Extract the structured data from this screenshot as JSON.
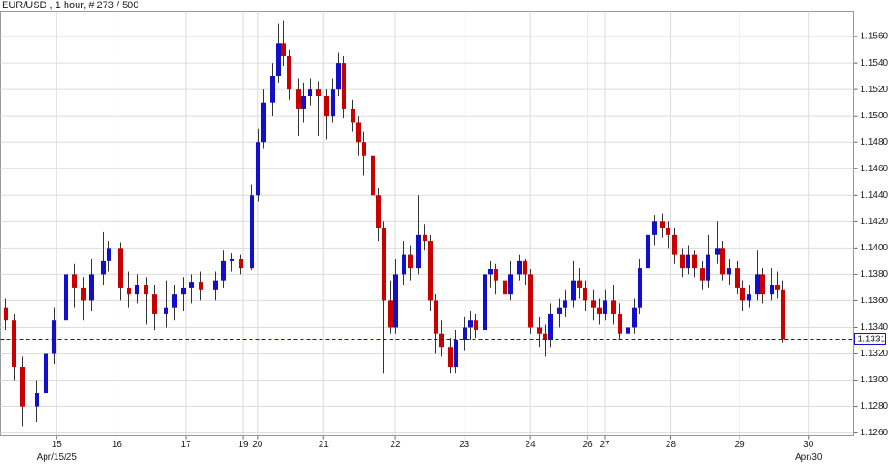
{
  "chart_data": {
    "type": "candlestick",
    "title": "EUR/USD , 1 hour, # 273 / 500",
    "up_color": "#1010c8",
    "down_color": "#c80000",
    "grid": true,
    "xlim": [
      -0.6,
      296.8
    ],
    "ylim": [
      1.1258,
      1.1579
    ],
    "xticks": [
      {
        "value": 19,
        "label": "15"
      },
      {
        "value": 40,
        "label": "16"
      },
      {
        "value": 64,
        "label": "17"
      },
      {
        "value": 84,
        "label": "19"
      },
      {
        "value": 89,
        "label": "20"
      },
      {
        "value": 112,
        "label": "21"
      },
      {
        "value": 137,
        "label": "22"
      },
      {
        "value": 161,
        "label": "23"
      },
      {
        "value": 184,
        "label": "24"
      },
      {
        "value": 204,
        "label": "26"
      },
      {
        "value": 210,
        "label": "27"
      },
      {
        "value": 233,
        "label": "28"
      },
      {
        "value": 257,
        "label": "29"
      },
      {
        "value": 281,
        "label": "30"
      }
    ],
    "xticks2": [
      {
        "value": 19,
        "label": "Apr/15/25"
      },
      {
        "value": 281,
        "label": "Apr/30"
      }
    ],
    "yticks": [
      {
        "value": 1.126,
        "label": "1.1260"
      },
      {
        "value": 1.128,
        "label": "1.1280"
      },
      {
        "value": 1.13,
        "label": "1.1300"
      },
      {
        "value": 1.132,
        "label": "1.1320"
      },
      {
        "value": 1.134,
        "label": "1.1340"
      },
      {
        "value": 1.136,
        "label": "1.1360"
      },
      {
        "value": 1.138,
        "label": "1.1380"
      },
      {
        "value": 1.14,
        "label": "1.1400"
      },
      {
        "value": 1.142,
        "label": "1.1420"
      },
      {
        "value": 1.144,
        "label": "1.1440"
      },
      {
        "value": 1.146,
        "label": "1.1460"
      },
      {
        "value": 1.148,
        "label": "1.1480"
      },
      {
        "value": 1.15,
        "label": "1.1500"
      },
      {
        "value": 1.152,
        "label": "1.1520"
      },
      {
        "value": 1.154,
        "label": "1.1540"
      },
      {
        "value": 1.156,
        "label": "1.1560"
      }
    ],
    "last_price": 1.1331,
    "last_price_color": "#1010c8",
    "x": [
      1,
      4,
      7,
      12,
      15,
      18,
      22,
      25,
      28,
      31,
      35,
      37,
      41,
      44,
      47,
      50,
      53,
      57,
      60,
      63,
      66,
      69,
      74,
      77,
      80,
      83,
      87,
      89,
      91,
      94,
      96,
      98,
      100,
      103,
      105,
      107,
      110,
      113,
      115,
      117,
      119,
      122,
      124,
      126,
      129,
      131,
      133,
      135,
      137,
      140,
      142,
      145,
      147,
      149,
      151,
      153,
      156,
      158,
      161,
      163,
      165,
      168,
      170,
      172,
      175,
      177,
      180,
      182,
      184,
      187,
      189,
      191,
      194,
      196,
      199,
      201,
      203,
      206,
      208,
      210,
      213,
      215,
      218,
      220,
      222,
      225,
      227,
      230,
      232,
      234,
      237,
      239,
      241,
      244,
      246,
      249,
      251,
      253,
      256,
      258,
      260,
      263,
      265,
      268,
      270,
      272
    ],
    "open": [
      1.1355,
      1.1345,
      1.131,
      1.128,
      1.129,
      1.132,
      1.1345,
      1.138,
      1.137,
      1.136,
      1.138,
      1.139,
      1.14,
      1.137,
      1.1365,
      1.1372,
      1.1365,
      1.135,
      1.1355,
      1.1365,
      1.137,
      1.1374,
      1.1368,
      1.1375,
      1.139,
      1.1392,
      1.1385,
      1.144,
      1.148,
      1.151,
      1.153,
      1.1555,
      1.1545,
      1.152,
      1.1505,
      1.1515,
      1.152,
      1.1515,
      1.15,
      1.152,
      1.154,
      1.1505,
      1.1495,
      1.148,
      1.147,
      1.144,
      1.1415,
      1.136,
      1.134,
      1.138,
      1.1395,
      1.1385,
      1.141,
      1.1405,
      1.136,
      1.1335,
      1.1325,
      1.131,
      1.133,
      1.134,
      1.1345,
      1.1338,
      1.138,
      1.1384,
      1.1375,
      1.1365,
      1.138,
      1.139,
      1.138,
      1.134,
      1.1335,
      1.133,
      1.135,
      1.1355,
      1.136,
      1.1375,
      1.137,
      1.136,
      1.1355,
      1.135,
      1.136,
      1.135,
      1.1335,
      1.134,
      1.1355,
      1.1385,
      1.141,
      1.142,
      1.1415,
      1.141,
      1.1395,
      1.1385,
      1.1395,
      1.1385,
      1.1375,
      1.1395,
      1.14,
      1.138,
      1.1385,
      1.137,
      1.136,
      1.1365,
      1.138,
      1.1365,
      1.1372,
      1.1368
    ],
    "high": [
      1.1362,
      1.135,
      1.1318,
      1.13,
      1.133,
      1.1355,
      1.1392,
      1.1388,
      1.1378,
      1.1392,
      1.1412,
      1.1405,
      1.1404,
      1.1382,
      1.138,
      1.1378,
      1.1372,
      1.1375,
      1.1372,
      1.1378,
      1.138,
      1.1382,
      1.1382,
      1.1398,
      1.1396,
      1.1395,
      1.1448,
      1.149,
      1.152,
      1.154,
      1.157,
      1.1572,
      1.155,
      1.1528,
      1.1525,
      1.1528,
      1.1526,
      1.152,
      1.1528,
      1.1548,
      1.1545,
      1.1512,
      1.15,
      1.1488,
      1.1475,
      1.1445,
      1.142,
      1.1375,
      1.1392,
      1.1405,
      1.1402,
      1.144,
      1.1418,
      1.141,
      1.1365,
      1.1345,
      1.1332,
      1.1338,
      1.1348,
      1.1352,
      1.135,
      1.1392,
      1.139,
      1.1388,
      1.138,
      1.139,
      1.1395,
      1.1392,
      1.1384,
      1.1348,
      1.1342,
      1.1358,
      1.1362,
      1.1368,
      1.139,
      1.1385,
      1.1375,
      1.1368,
      1.1362,
      1.1368,
      1.1372,
      1.1358,
      1.1348,
      1.1362,
      1.1392,
      1.1418,
      1.1425,
      1.1426,
      1.142,
      1.1415,
      1.14,
      1.1402,
      1.1398,
      1.139,
      1.141,
      1.142,
      1.1405,
      1.1392,
      1.139,
      1.1375,
      1.1372,
      1.1398,
      1.1385,
      1.1385,
      1.1382,
      1.1375
    ],
    "low": [
      1.1338,
      1.13,
      1.1265,
      1.1268,
      1.1285,
      1.1312,
      1.1338,
      1.1355,
      1.1345,
      1.1352,
      1.1372,
      1.1382,
      1.136,
      1.1355,
      1.1358,
      1.1342,
      1.1338,
      1.134,
      1.1345,
      1.1352,
      1.1358,
      1.136,
      1.136,
      1.137,
      1.1382,
      1.138,
      1.1383,
      1.1435,
      1.1475,
      1.15,
      1.1525,
      1.1538,
      1.1512,
      1.1485,
      1.1495,
      1.1508,
      1.1485,
      1.1482,
      1.1495,
      1.1515,
      1.1498,
      1.1488,
      1.147,
      1.1455,
      1.1432,
      1.1405,
      1.1305,
      1.1335,
      1.1335,
      1.1372,
      1.1375,
      1.138,
      1.1398,
      1.1352,
      1.132,
      1.1318,
      1.1305,
      1.1305,
      1.1322,
      1.133,
      1.1332,
      1.1335,
      1.137,
      1.1365,
      1.1352,
      1.136,
      1.1375,
      1.1372,
      1.1335,
      1.1325,
      1.1318,
      1.1325,
      1.134,
      1.1348,
      1.1355,
      1.1362,
      1.1352,
      1.1345,
      1.1342,
      1.1345,
      1.1342,
      1.133,
      1.133,
      1.1335,
      1.135,
      1.138,
      1.1402,
      1.1408,
      1.14,
      1.1388,
      1.1378,
      1.138,
      1.1378,
      1.1368,
      1.137,
      1.1388,
      1.1375,
      1.1372,
      1.1365,
      1.1352,
      1.1355,
      1.136,
      1.1358,
      1.136,
      1.1362,
      1.1328
    ],
    "close": [
      1.1345,
      1.131,
      1.128,
      1.129,
      1.132,
      1.1345,
      1.138,
      1.137,
      1.136,
      1.138,
      1.139,
      1.14,
      1.137,
      1.1365,
      1.1372,
      1.1365,
      1.135,
      1.1355,
      1.1365,
      1.137,
      1.1374,
      1.1368,
      1.1375,
      1.139,
      1.1392,
      1.1385,
      1.144,
      1.148,
      1.151,
      1.153,
      1.1555,
      1.1545,
      1.152,
      1.1505,
      1.1515,
      1.152,
      1.1515,
      1.15,
      1.152,
      1.154,
      1.1505,
      1.1495,
      1.148,
      1.147,
      1.144,
      1.1415,
      1.136,
      1.134,
      1.138,
      1.1395,
      1.1385,
      1.141,
      1.1405,
      1.136,
      1.1335,
      1.1325,
      1.131,
      1.133,
      1.134,
      1.1345,
      1.1338,
      1.138,
      1.1384,
      1.1375,
      1.1365,
      1.138,
      1.139,
      1.138,
      1.134,
      1.1335,
      1.133,
      1.135,
      1.1355,
      1.136,
      1.1375,
      1.137,
      1.136,
      1.1355,
      1.135,
      1.136,
      1.135,
      1.1335,
      1.134,
      1.1355,
      1.1385,
      1.141,
      1.142,
      1.1415,
      1.141,
      1.1395,
      1.1385,
      1.1395,
      1.1385,
      1.1375,
      1.1395,
      1.14,
      1.138,
      1.1385,
      1.137,
      1.136,
      1.1365,
      1.138,
      1.1365,
      1.1372,
      1.1368,
      1.1331
    ]
  }
}
